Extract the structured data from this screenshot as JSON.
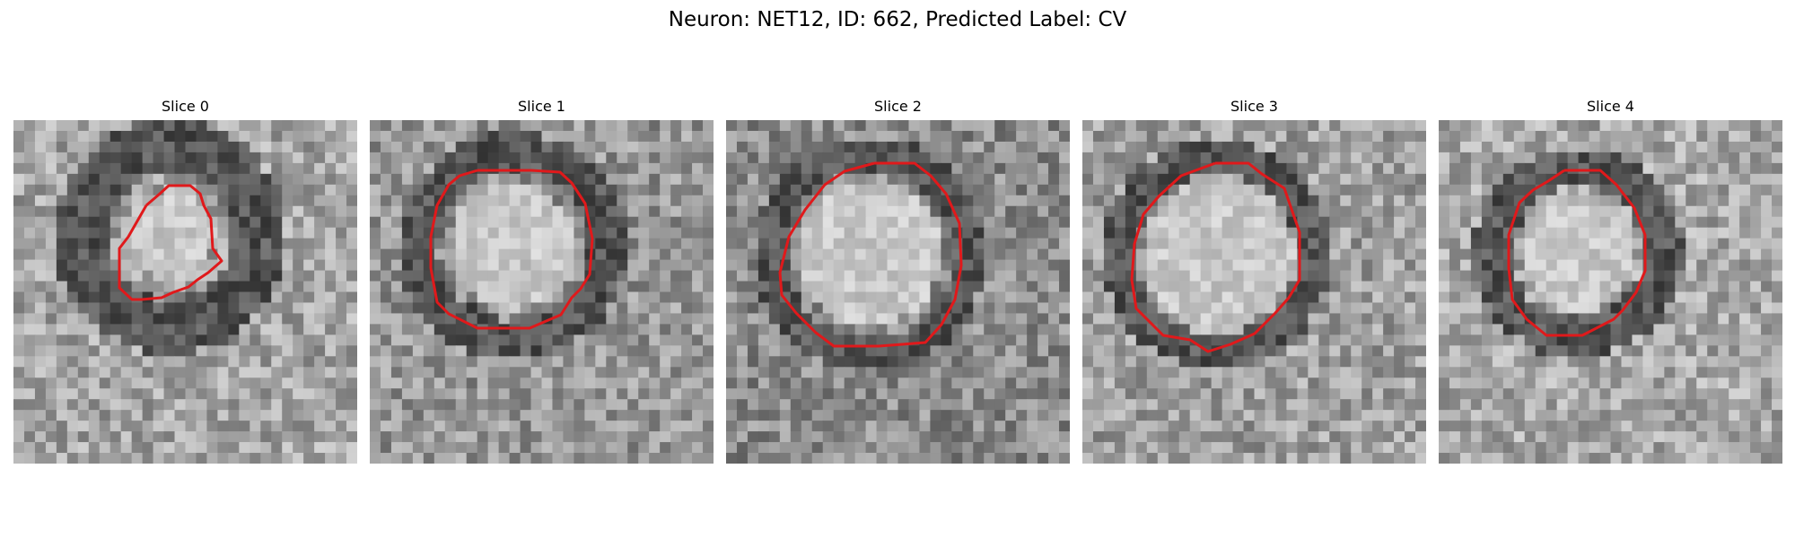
{
  "figure": {
    "title": "Neuron: NET12, ID: 662, Predicted Label: CV"
  },
  "panels": [
    {
      "title": "Slice 0"
    },
    {
      "title": "Slice 1"
    },
    {
      "title": "Slice 2"
    },
    {
      "title": "Slice 3"
    },
    {
      "title": "Slice 4"
    }
  ],
  "colors": {
    "contour": "#e0191b",
    "background": "#ffffff"
  }
}
